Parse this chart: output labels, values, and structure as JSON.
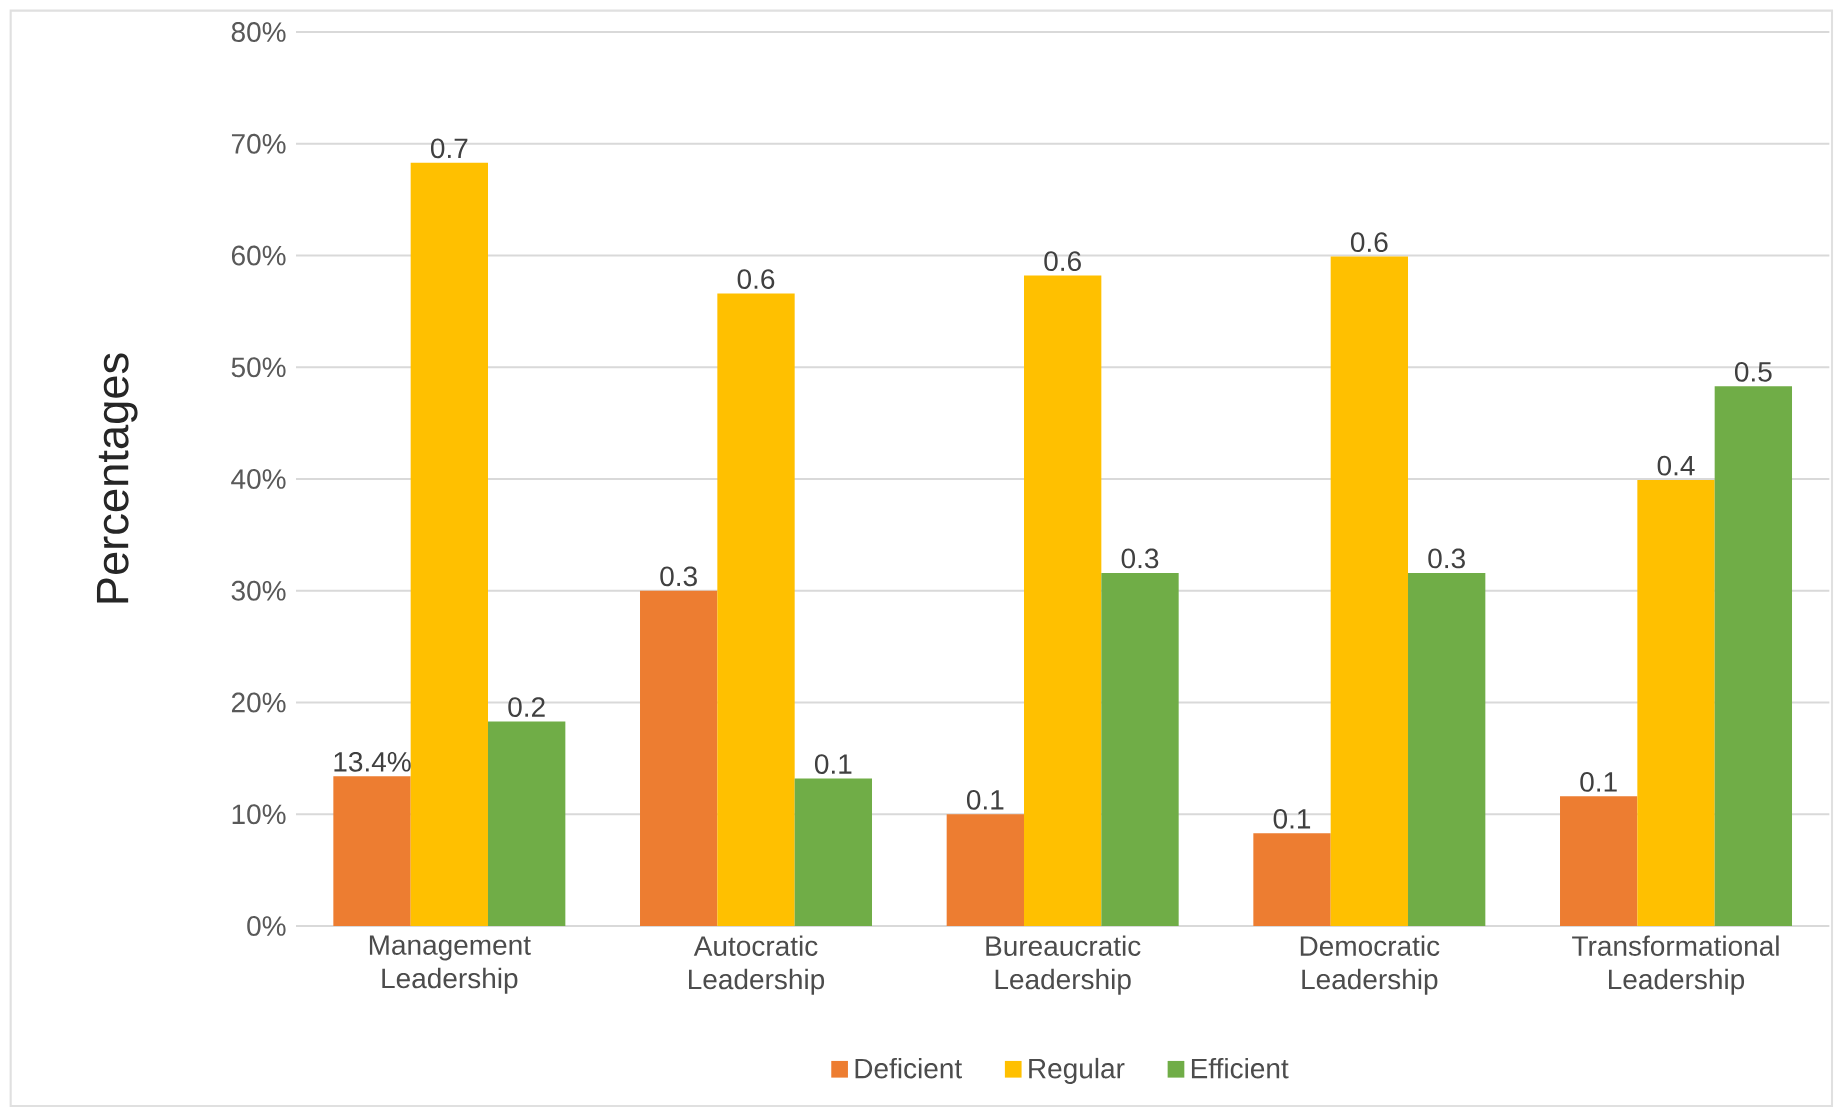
{
  "chart_data": {
    "type": "bar",
    "ylabel": "Percentages",
    "categories": [
      "Management Leadership",
      "Autocratic Leadership",
      "Bureaucratic Leadership",
      "Democratic Leadership",
      "Transformational Leadership"
    ],
    "series": [
      {
        "name": "Deficient",
        "color": "#ed7d31",
        "values": [
          0.134,
          0.3,
          0.1,
          0.083,
          0.116
        ],
        "value_labels": [
          "13.4%",
          "0.3",
          "0.1",
          "0.1",
          "0.1"
        ]
      },
      {
        "name": "Regular",
        "color": "#ffc000",
        "values": [
          0.683,
          0.566,
          0.582,
          0.599,
          0.399
        ],
        "value_labels": [
          "0.7",
          "0.6",
          "0.6",
          "0.6",
          "0.4"
        ]
      },
      {
        "name": "Efficient",
        "color": "#70ad47",
        "values": [
          0.183,
          0.132,
          0.316,
          0.316,
          0.483
        ],
        "value_labels": [
          "0.2",
          "0.1",
          "0.3",
          "0.3",
          "0.5"
        ]
      }
    ],
    "ylim": [
      0,
      0.8
    ],
    "yticks": [
      {
        "value": 0,
        "label": "0%"
      },
      {
        "value": 0.1,
        "label": "10%"
      },
      {
        "value": 0.2,
        "label": "20%"
      },
      {
        "value": 0.3,
        "label": "30%"
      },
      {
        "value": 0.4,
        "label": "40%"
      },
      {
        "value": 0.5,
        "label": "50%"
      },
      {
        "value": 0.6,
        "label": "60%"
      },
      {
        "value": 0.7,
        "label": "70%"
      },
      {
        "value": 0.8,
        "label": "80%"
      }
    ],
    "grid": "y",
    "legend": "bottom"
  }
}
